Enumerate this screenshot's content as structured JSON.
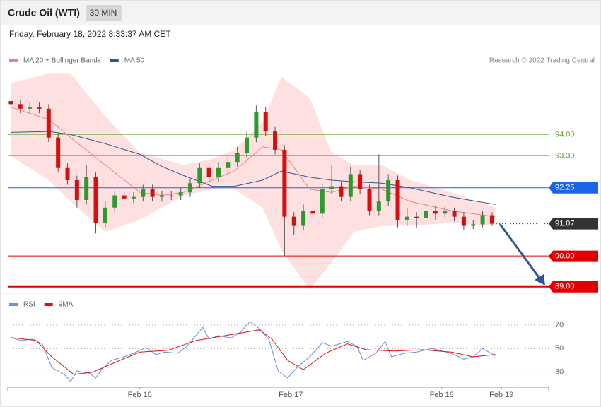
{
  "header": {
    "title": "Crude Oil (WTI)",
    "interval": "30 MIN",
    "date": "Friday, February 18, 2022 8:33:37 AM CET",
    "credit": "Research © 2022 Trading Central"
  },
  "chart_data": [
    {
      "type": "candlestick",
      "up_color": "#2e9a2e",
      "down_color": "#d40f0f",
      "xlim": [
        0,
        172
      ],
      "ylim": [
        88.9,
        96.1
      ],
      "x": [
        1,
        4,
        7,
        10,
        13,
        16,
        19,
        22,
        25,
        28,
        31,
        34,
        37,
        40,
        43,
        46,
        49,
        52,
        55,
        58,
        61,
        64,
        67,
        70,
        73,
        76,
        79,
        82,
        85,
        88,
        91,
        94,
        97,
        100,
        103,
        106,
        109,
        112,
        115,
        118,
        121,
        124,
        127,
        130,
        133,
        136,
        139,
        142,
        145,
        148,
        151,
        154
      ],
      "open": [
        95.1,
        95.0,
        94.85,
        94.9,
        94.85,
        93.9,
        92.9,
        92.5,
        91.85,
        92.6,
        91.1,
        91.6,
        92.0,
        91.9,
        91.95,
        92.2,
        91.95,
        92.0,
        92.0,
        92.1,
        92.4,
        92.9,
        92.6,
        92.9,
        93.1,
        93.4,
        93.9,
        94.75,
        94.1,
        93.5,
        91.3,
        91.0,
        91.5,
        91.4,
        92.2,
        92.3,
        91.95,
        92.7,
        92.2,
        91.5,
        91.8,
        92.5,
        91.2,
        91.3,
        91.25,
        91.5,
        91.4,
        91.5,
        91.3,
        91.0,
        91.05,
        91.35
      ],
      "high": [
        95.25,
        95.15,
        95.05,
        95.05,
        95.0,
        94.05,
        93.05,
        92.65,
        93.0,
        92.75,
        91.8,
        92.15,
        92.15,
        92.1,
        92.35,
        92.35,
        92.15,
        92.15,
        92.25,
        92.55,
        93.05,
        93.05,
        93.1,
        93.3,
        93.6,
        94.1,
        94.95,
        94.9,
        94.25,
        93.65,
        91.45,
        91.7,
        91.65,
        92.4,
        93.0,
        92.45,
        92.95,
        92.85,
        92.35,
        93.35,
        92.7,
        92.65,
        91.6,
        91.45,
        91.7,
        91.65,
        91.65,
        91.6,
        91.45,
        91.2,
        91.5,
        91.45
      ],
      "low": [
        94.85,
        94.7,
        94.7,
        94.7,
        93.75,
        92.75,
        92.35,
        91.6,
        91.7,
        90.75,
        90.95,
        91.45,
        91.75,
        91.75,
        91.8,
        91.8,
        91.8,
        91.85,
        91.85,
        91.95,
        92.25,
        92.45,
        92.45,
        92.75,
        92.95,
        93.25,
        93.75,
        93.95,
        93.35,
        90.0,
        90.7,
        90.85,
        91.25,
        91.25,
        92.05,
        91.8,
        91.8,
        92.05,
        91.35,
        91.35,
        91.65,
        90.95,
        91.0,
        90.95,
        91.1,
        91.2,
        91.25,
        91.15,
        90.85,
        90.9,
        90.95,
        91.0
      ],
      "close": [
        95.0,
        94.85,
        94.9,
        94.85,
        93.9,
        92.9,
        92.5,
        91.85,
        92.6,
        91.1,
        91.6,
        92.0,
        91.9,
        91.95,
        92.2,
        91.95,
        92.0,
        92.0,
        92.1,
        92.4,
        92.9,
        92.6,
        92.9,
        93.1,
        93.4,
        93.9,
        94.75,
        94.1,
        93.5,
        91.3,
        91.0,
        91.5,
        91.4,
        92.2,
        92.3,
        91.95,
        92.7,
        92.2,
        91.5,
        91.8,
        92.5,
        91.2,
        91.3,
        91.25,
        91.5,
        91.4,
        91.5,
        91.3,
        91.0,
        91.05,
        91.35,
        91.07
      ],
      "overlays": [
        {
          "name": "MA 20 + Bollinger Bands",
          "color": "#f08080",
          "band_color": "#ffe0e0",
          "x": [
            1,
            13,
            20,
            31,
            42,
            49,
            56,
            65,
            72,
            81,
            87,
            96,
            103,
            110,
            119,
            128,
            141,
            155
          ],
          "values": [
            94.9,
            94.5,
            93.9,
            93.0,
            92.1,
            92.0,
            92.1,
            92.5,
            92.8,
            93.6,
            93.5,
            92.2,
            92.1,
            92.3,
            92.2,
            91.8,
            91.5,
            91.3
          ],
          "upper": [
            95.7,
            96.0,
            96.0,
            94.6,
            93.4,
            93.2,
            93.0,
            93.2,
            93.5,
            94.4,
            95.9,
            95.2,
            93.4,
            93.0,
            93.0,
            92.5,
            92.1,
            91.6
          ],
          "lower": [
            93.3,
            92.5,
            91.8,
            90.8,
            91.2,
            91.6,
            92.0,
            92.2,
            92.2,
            91.6,
            90.2,
            88.9,
            89.8,
            90.8,
            91.0,
            91.0,
            91.1,
            91.0
          ]
        },
        {
          "name": "MA 50",
          "color": "#2f5597",
          "x": [
            1,
            13,
            20,
            31,
            42,
            49,
            56,
            65,
            72,
            81,
            87,
            96,
            103,
            110,
            119,
            128,
            141,
            155
          ],
          "values": [
            94.07,
            94.1,
            94.0,
            93.7,
            93.35,
            92.95,
            92.65,
            92.3,
            92.3,
            92.5,
            92.8,
            92.6,
            92.5,
            92.45,
            92.4,
            92.25,
            91.95,
            91.7
          ]
        }
      ],
      "levels": [
        {
          "value": 94,
          "label": "94.00",
          "color": "#5fa82b",
          "style": "line"
        },
        {
          "value": 93.3,
          "label": "93.30",
          "color": "#5fa82b",
          "style": "line"
        },
        {
          "value": 92.25,
          "label": "92.25",
          "color": "#1a66e8",
          "style": "box"
        },
        {
          "value": 91.07,
          "label": "91.07",
          "color": "#333333",
          "style": "dotted"
        },
        {
          "value": 90,
          "label": "90.00",
          "color": "#e00000",
          "style": "thick"
        },
        {
          "value": 89,
          "label": "89.00",
          "color": "#e00000",
          "style": "thick"
        }
      ]
    },
    {
      "type": "line",
      "xlim": [
        0,
        172
      ],
      "ylim": [
        19,
        79
      ],
      "yticks": [
        70,
        50,
        30
      ],
      "xticks": [
        {
          "value": 42,
          "label": "Feb 16"
        },
        {
          "value": 90,
          "label": "Feb 17"
        },
        {
          "value": 138,
          "label": "Feb 18"
        },
        {
          "value": 157,
          "label": "Feb 19"
        }
      ],
      "series": [
        {
          "name": "RSI",
          "color": "#6b8fd8",
          "x": [
            1,
            4,
            8,
            11,
            14,
            18,
            20,
            22,
            26,
            28,
            30,
            33,
            37,
            40,
            44,
            47,
            50,
            54,
            57,
            62,
            64,
            67,
            71,
            74,
            77,
            80,
            83,
            86,
            89,
            92,
            96,
            100,
            103,
            108,
            111,
            113,
            117,
            120,
            122,
            126,
            130,
            135,
            138,
            141,
            145,
            148,
            151,
            155
          ],
          "values": [
            59.3,
            56.9,
            58,
            54,
            34,
            28,
            22,
            31,
            29,
            25,
            33,
            40,
            43,
            46,
            51,
            45,
            47,
            46,
            52,
            68,
            58,
            61,
            59,
            64,
            73,
            67,
            58,
            31,
            25,
            34,
            43,
            55,
            52,
            56,
            52,
            40,
            46,
            56,
            43,
            46,
            47,
            50,
            48,
            46,
            41,
            43,
            50,
            44
          ]
        },
        {
          "name": "9MA",
          "color": "#e01010",
          "x": [
            1,
            9,
            14,
            21,
            27,
            33,
            42,
            51,
            60,
            69,
            80,
            84,
            89,
            94,
            101,
            108,
            114,
            123,
            132,
            141,
            148,
            155
          ],
          "values": [
            59.3,
            56.9,
            43,
            28,
            30,
            37,
            47,
            48.5,
            57,
            61,
            66,
            58,
            40,
            32,
            46,
            54,
            49,
            48,
            49,
            47,
            43,
            45
          ]
        }
      ]
    }
  ]
}
